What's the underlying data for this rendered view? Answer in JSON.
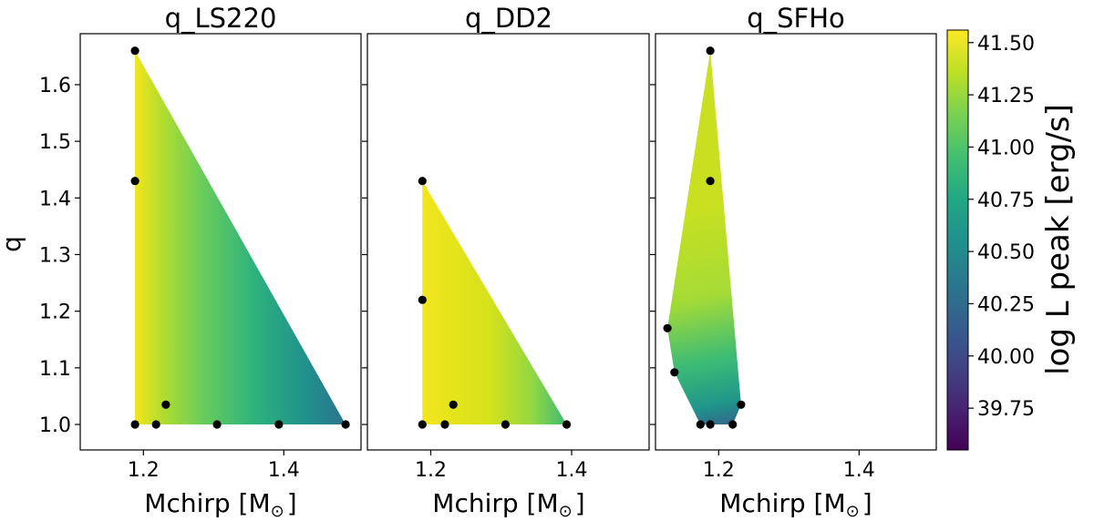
{
  "chart_data": {
    "type": "heatmap",
    "colorbar": {
      "label": "log L peak [erg/s]",
      "range": [
        39.55,
        41.56
      ],
      "colormap": "viridis",
      "ticks": [
        "39.75",
        "40.00",
        "40.25",
        "40.50",
        "40.75",
        "41.00",
        "41.25",
        "41.50"
      ]
    },
    "shared_y": {
      "label": "q",
      "ylim": [
        0.955,
        1.69
      ],
      "ticks": [
        "1.0",
        "1.1",
        "1.2",
        "1.3",
        "1.4",
        "1.5",
        "1.6"
      ]
    },
    "panels": [
      {
        "title": "q_LS220",
        "xlabel_main": "Mchirp [M",
        "xlabel_sub": "⊙",
        "xlabel_end": "]",
        "xlim": [
          1.11,
          1.51
        ],
        "xticks": [
          "1.2",
          "1.4"
        ],
        "region": [
          [
            1.188,
            1.0
          ],
          [
            1.488,
            1.0
          ],
          [
            1.188,
            1.66
          ]
        ],
        "points": [
          {
            "x": 1.188,
            "y": 1.66
          },
          {
            "x": 1.188,
            "y": 1.43
          },
          {
            "x": 1.188,
            "y": 1.0
          },
          {
            "x": 1.218,
            "y": 1.0
          },
          {
            "x": 1.232,
            "y": 1.035
          },
          {
            "x": 1.305,
            "y": 1.0
          },
          {
            "x": 1.393,
            "y": 1.0
          },
          {
            "x": 1.488,
            "y": 1.0
          }
        ]
      },
      {
        "title": "q_DD2",
        "xlabel_main": "Mchirp [M",
        "xlabel_sub": "⊙",
        "xlabel_end": "]",
        "xlim": [
          1.11,
          1.51
        ],
        "xticks": [
          "1.2",
          "1.4"
        ],
        "region": [
          [
            1.188,
            1.0
          ],
          [
            1.393,
            1.0
          ],
          [
            1.188,
            1.43
          ]
        ],
        "points": [
          {
            "x": 1.188,
            "y": 1.43
          },
          {
            "x": 1.188,
            "y": 1.22
          },
          {
            "x": 1.188,
            "y": 1.0
          },
          {
            "x": 1.22,
            "y": 1.0
          },
          {
            "x": 1.232,
            "y": 1.035
          },
          {
            "x": 1.306,
            "y": 1.0
          },
          {
            "x": 1.393,
            "y": 1.0
          }
        ]
      },
      {
        "title": "q_SFHo",
        "xlabel_main": "Mchirp [M",
        "xlabel_sub": "⊙",
        "xlabel_end": "]",
        "xlim": [
          1.11,
          1.51
        ],
        "xticks": [
          "1.2",
          "1.4"
        ],
        "region": [
          [
            1.188,
            1.66
          ],
          [
            1.232,
            1.035
          ],
          [
            1.22,
            1.0
          ],
          [
            1.174,
            1.0
          ],
          [
            1.137,
            1.092
          ],
          [
            1.127,
            1.17
          ]
        ],
        "points": [
          {
            "x": 1.188,
            "y": 1.66
          },
          {
            "x": 1.188,
            "y": 1.43
          },
          {
            "x": 1.127,
            "y": 1.17
          },
          {
            "x": 1.137,
            "y": 1.092
          },
          {
            "x": 1.232,
            "y": 1.035
          },
          {
            "x": 1.174,
            "y": 1.0
          },
          {
            "x": 1.188,
            "y": 1.0
          },
          {
            "x": 1.22,
            "y": 1.0
          }
        ]
      }
    ]
  }
}
